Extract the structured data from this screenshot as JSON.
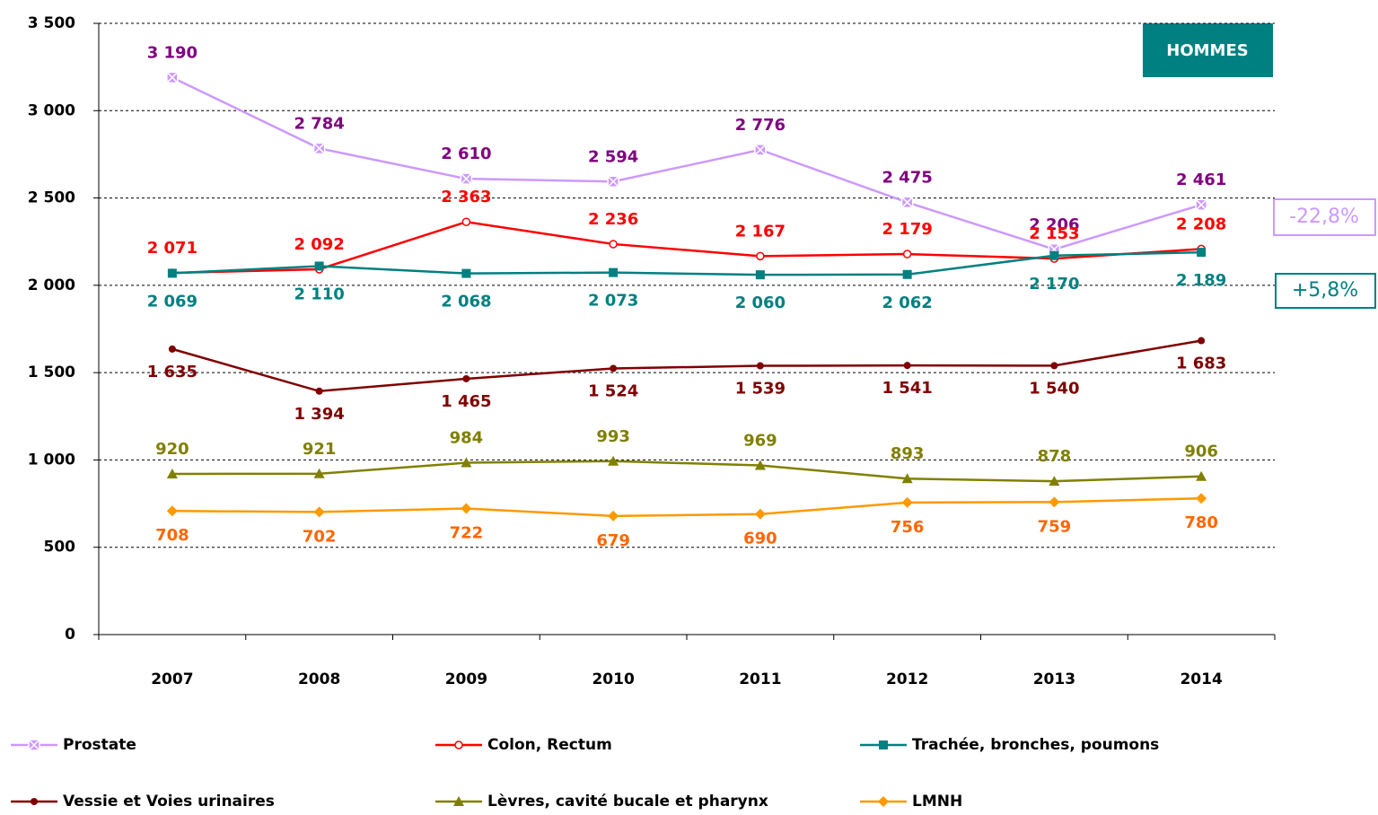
{
  "chart_data": {
    "type": "line",
    "categories": [
      "2007",
      "2008",
      "2009",
      "2010",
      "2011",
      "2012",
      "2013",
      "2014"
    ],
    "ylim": [
      0,
      3500
    ],
    "yticks": [
      0,
      500,
      {
        "value": 1000,
        "label": "1 000"
      },
      {
        "value": 1500,
        "label": "1 500"
      },
      {
        "value": 2000,
        "label": "2 000"
      },
      {
        "value": 2500,
        "label": "2 500"
      },
      {
        "value": 3000,
        "label": "3 000"
      },
      {
        "value": 3500,
        "label": "3 500"
      }
    ],
    "grid": true,
    "series": [
      {
        "name": "Prostate",
        "color": "#cc99ff",
        "label_color": "#800080",
        "marker": "x-square",
        "values": [
          3190,
          2784,
          2610,
          2594,
          2776,
          2475,
          2206,
          2461
        ],
        "value_labels": [
          "3 190",
          "2 784",
          "2 610",
          "2 594",
          "2 776",
          "2 475",
          "2 206",
          "2 461"
        ]
      },
      {
        "name": "Colon, Rectum",
        "color": "#ff0000",
        "label_color": "#ff0000",
        "marker": "circle-open",
        "values": [
          2071,
          2092,
          2363,
          2236,
          2167,
          2179,
          2153,
          2208
        ],
        "value_labels": [
          "2 071",
          "2 092",
          "2 363",
          "2 236",
          "2 167",
          "2 179",
          "2 153",
          "2 208"
        ]
      },
      {
        "name": "Trachée, bronches, poumons",
        "color": "#008080",
        "label_color": "#008080",
        "marker": "square",
        "values": [
          2069,
          2110,
          2068,
          2073,
          2060,
          2062,
          2170,
          2189
        ],
        "value_labels": [
          "2 069",
          "2 110",
          "2 068",
          "2 073",
          "2 060",
          "2 062",
          "2 170",
          "2 189"
        ]
      },
      {
        "name": "Vessie et Voies urinaires",
        "color": "#800000",
        "label_color": "#800000",
        "marker": "circle",
        "values": [
          1635,
          1394,
          1465,
          1524,
          1539,
          1541,
          1540,
          1683
        ],
        "value_labels": [
          "1 635",
          "1 394",
          "1 465",
          "1 524",
          "1 539",
          "1 541",
          "1 540",
          "1 683"
        ]
      },
      {
        "name": "Lèvres, cavité bucale et pharynx",
        "color": "#808000",
        "label_color": "#808000",
        "marker": "triangle",
        "values": [
          920,
          921,
          984,
          993,
          969,
          893,
          878,
          906
        ]
      },
      {
        "name": "LMNH",
        "color": "#ff9900",
        "label_color": "#ff6600",
        "marker": "diamond",
        "values": [
          708,
          702,
          722,
          679,
          690,
          756,
          759,
          780
        ]
      }
    ],
    "annotations": [
      "HOMMES",
      "-22,8%",
      "+5,8%"
    ]
  }
}
